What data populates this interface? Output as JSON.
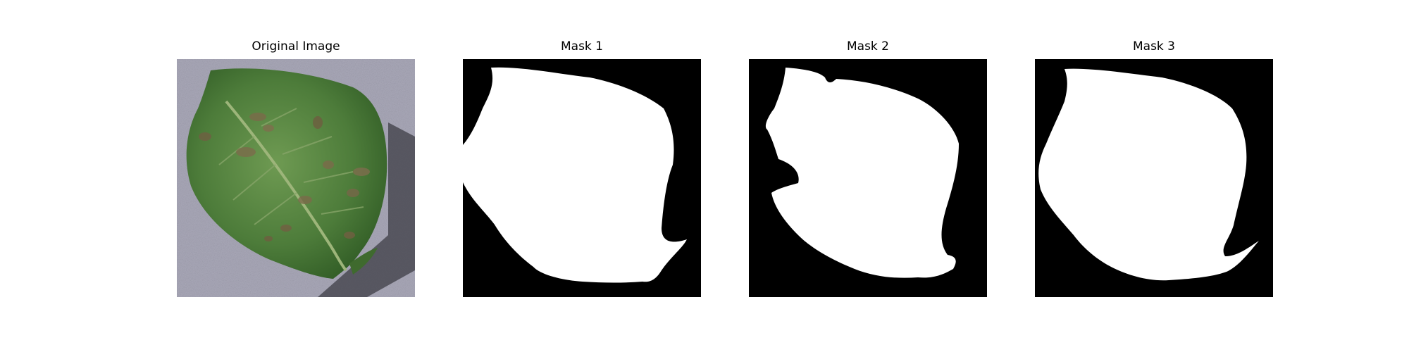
{
  "figure": {
    "panels": [
      {
        "title": "Original Image"
      },
      {
        "title": "Mask 1"
      },
      {
        "title": "Mask 2"
      },
      {
        "title": "Mask 3"
      }
    ]
  },
  "colors": {
    "background": "#ffffff",
    "mask_foreground": "#ffffff",
    "mask_background": "#000000",
    "leaf_green": "#4a7a3a",
    "surface_gray": "#a8a8b6"
  }
}
